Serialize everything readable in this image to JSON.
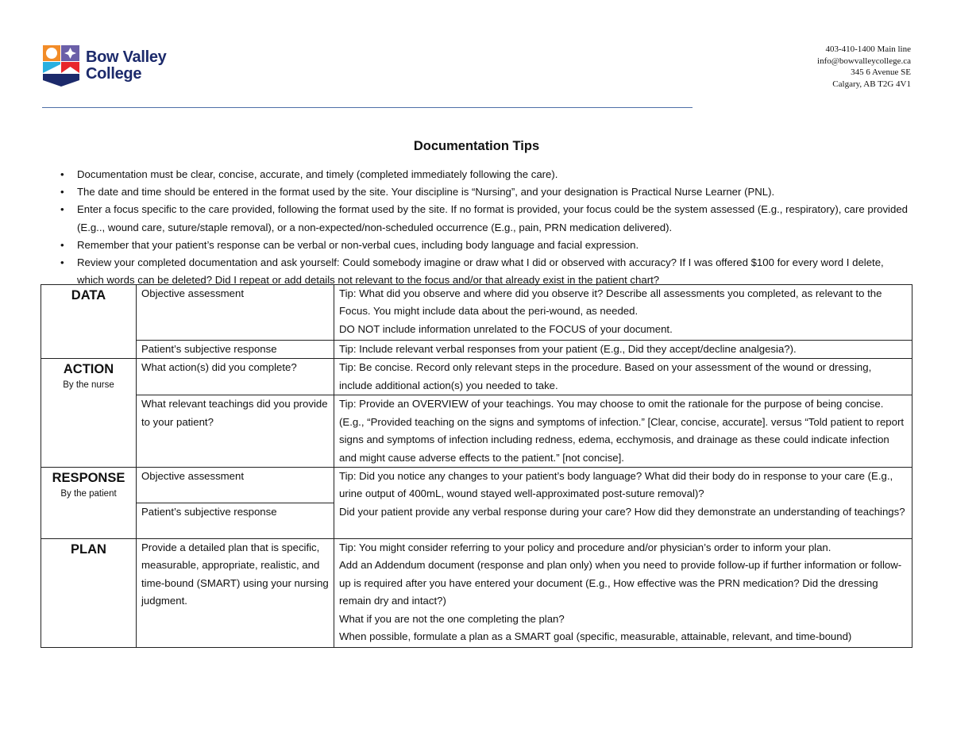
{
  "header": {
    "logo_text": [
      "Bow Valley",
      "College"
    ],
    "contact": [
      "403-410-1400 Main line",
      "info@bowvalleycollege.ca",
      "345 6 Avenue SE",
      "Calgary, AB T2G 4V1"
    ]
  },
  "title": "Documentation Tips",
  "bullets": [
    "Documentation must be clear, concise, accurate, and timely (completed immediately following the care).",
    "The date and time should be entered in the format used by the site. Your discipline is “Nursing”, and your designation is Practical Nurse Learner (PNL).",
    "Enter a focus specific to the care provided, following the format used by the site. If no format is provided, your focus could be the system assessed (E.g., respiratory), care provided (E.g.., wound care, suture/staple removal), or a non-expected/non-scheduled occurrence (E.g., pain, PRN medication delivered).",
    "Remember that your patient’s response can be verbal or non-verbal cues, including body language and facial expression.",
    "Review your completed documentation and ask yourself: Could somebody imagine or draw what I did or observed with accuracy? If I was offered $100 for every word I delete, which words can be deleted? Did I repeat or add details not relevant to the focus and/or that already exist in the patient chart?"
  ],
  "table": {
    "data": {
      "heading": "DATA",
      "rows": [
        {
          "item": "Objective assessment",
          "tip": [
            "Tip: What did you observe and where did you observe it? Describe all assessments you completed, as relevant to the Focus. You might include data about the peri-wound, as needed.",
            "DO NOT include information unrelated to the FOCUS of your document."
          ]
        },
        {
          "item": "Patient’s subjective response",
          "tip": [
            "Tip: Include relevant verbal responses from your patient (E.g., Did they accept/decline analgesia?)."
          ]
        }
      ]
    },
    "action": {
      "heading": "ACTION",
      "sub": "By the nurse",
      "rows": [
        {
          "item": "What action(s) did you complete?",
          "tip": [
            "Tip: Be concise. Record only relevant steps in the procedure. Based on your assessment of the wound or dressing, include additional action(s) you needed to take."
          ]
        },
        {
          "item": "What relevant teachings did you provide to your patient?",
          "tip": [
            "Tip: Provide an OVERVIEW of your teachings. You may choose to omit the rationale for the purpose of being concise. (E.g., “Provided teaching on the signs and symptoms of infection.”  [Clear, concise, accurate]. versus “Told patient to report signs and symptoms of infection including redness, edema, ecchymosis, and drainage as these could indicate infection and might cause adverse effects to the patient.” [not concise]."
          ]
        }
      ]
    },
    "response": {
      "heading": "RESPONSE",
      "sub": "By the patient",
      "items": [
        "Objective assessment",
        "Patient’s subjective response"
      ],
      "tip": [
        "Tip: Did you notice any changes to your patient’s body language?  What did their body do in response to your care (E.g., urine output of 400mL, wound stayed well-approximated post-suture removal)?",
        "Did your patient provide any verbal response during your care? How did they demonstrate an understanding of teachings?"
      ]
    },
    "plan": {
      "heading": "PLAN",
      "item": "Provide a detailed plan that is specific, measurable, appropriate, realistic, and time-bound (SMART) using your nursing judgment.",
      "tip": [
        "Tip: You might consider referring to your policy and procedure and/or physician’s order to inform your plan.",
        "Add an Addendum document (response and plan only) when you need to provide follow-up if further information or follow-up is required after you have entered your document (E.g., How effective was the PRN medication? Did the dressing remain dry and intact?)",
        "What if you are not the one completing the plan?",
        "When possible, formulate a plan as a SMART goal (specific, measurable, attainable, relevant, and time-bound)"
      ]
    }
  },
  "colors": {
    "brand_navy": "#1c2a6b",
    "orange": "#f28c28",
    "purple": "#6b5fa8",
    "cyan": "#29b0e0",
    "red": "#e8262c",
    "rule": "#4f6fa8"
  }
}
